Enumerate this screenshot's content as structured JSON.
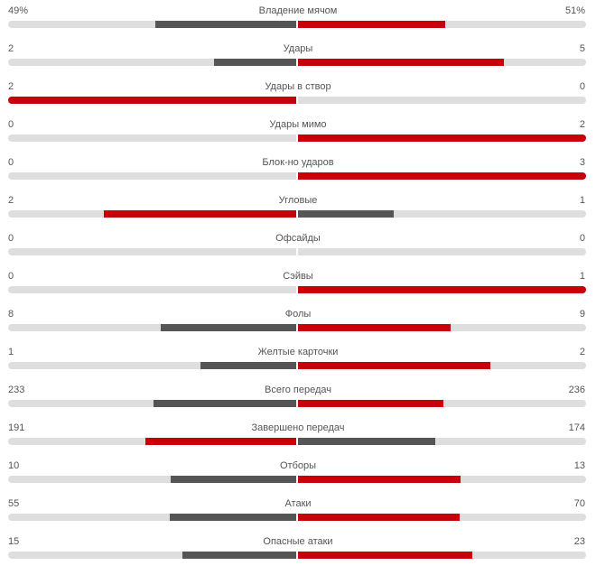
{
  "colors": {
    "leader": "#c8000a",
    "trailer": "#555555",
    "track": "#dedede"
  },
  "stats": [
    {
      "label": "Владение мячом",
      "home": "49%",
      "away": "51%",
      "home_num": 49,
      "away_num": 51
    },
    {
      "label": "Удары",
      "home": "2",
      "away": "5",
      "home_num": 2,
      "away_num": 5
    },
    {
      "label": "Удары в створ",
      "home": "2",
      "away": "0",
      "home_num": 2,
      "away_num": 0
    },
    {
      "label": "Удары мимо",
      "home": "0",
      "away": "2",
      "home_num": 0,
      "away_num": 2
    },
    {
      "label": "Блок-но ударов",
      "home": "0",
      "away": "3",
      "home_num": 0,
      "away_num": 3
    },
    {
      "label": "Угловые",
      "home": "2",
      "away": "1",
      "home_num": 2,
      "away_num": 1
    },
    {
      "label": "Офсайды",
      "home": "0",
      "away": "0",
      "home_num": 0,
      "away_num": 0
    },
    {
      "label": "Сэйвы",
      "home": "0",
      "away": "1",
      "home_num": 0,
      "away_num": 1
    },
    {
      "label": "Фолы",
      "home": "8",
      "away": "9",
      "home_num": 8,
      "away_num": 9
    },
    {
      "label": "Желтые карточки",
      "home": "1",
      "away": "2",
      "home_num": 1,
      "away_num": 2
    },
    {
      "label": "Всего передач",
      "home": "233",
      "away": "236",
      "home_num": 233,
      "away_num": 236
    },
    {
      "label": "Завершено передач",
      "home": "191",
      "away": "174",
      "home_num": 191,
      "away_num": 174
    },
    {
      "label": "Отборы",
      "home": "10",
      "away": "13",
      "home_num": 10,
      "away_num": 13
    },
    {
      "label": "Атаки",
      "home": "55",
      "away": "70",
      "home_num": 55,
      "away_num": 70
    },
    {
      "label": "Опасные атаки",
      "home": "15",
      "away": "23",
      "home_num": 15,
      "away_num": 23
    }
  ]
}
